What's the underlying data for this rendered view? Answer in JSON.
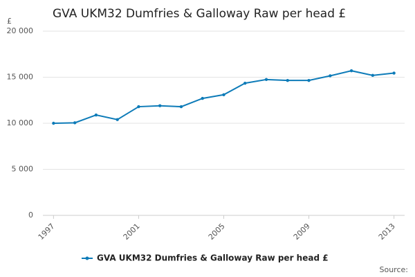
{
  "chart_data": {
    "type": "line",
    "title": "GVA UKM32 Dumfries & Galloway Raw per head £",
    "y_label": "£",
    "x": [
      1997,
      1998,
      1999,
      2000,
      2001,
      2002,
      2003,
      2004,
      2005,
      2006,
      2007,
      2008,
      2009,
      2010,
      2011,
      2012,
      2013
    ],
    "series": [
      {
        "name": "GVA UKM32 Dumfries & Galloway Raw per head £",
        "color": "#0d7bb8",
        "values": [
          10000,
          10050,
          10900,
          10400,
          11800,
          11900,
          11800,
          12700,
          13100,
          14350,
          14750,
          14650,
          14650,
          15150,
          15700,
          15200,
          15450
        ]
      }
    ],
    "xlim": [
      1996.5,
      2013.5
    ],
    "xticks": [
      1997,
      2001,
      2005,
      2009,
      2013
    ],
    "ylim": [
      0,
      20000
    ],
    "yticks": [
      0,
      {
        "value": 5000,
        "label": "5 000"
      },
      {
        "value": 10000,
        "label": "10 000"
      },
      {
        "value": 15000,
        "label": "15 000"
      },
      {
        "value": 20000,
        "label": "20 000"
      }
    ],
    "grid": true,
    "legend": "bottom",
    "source": "Source:"
  }
}
